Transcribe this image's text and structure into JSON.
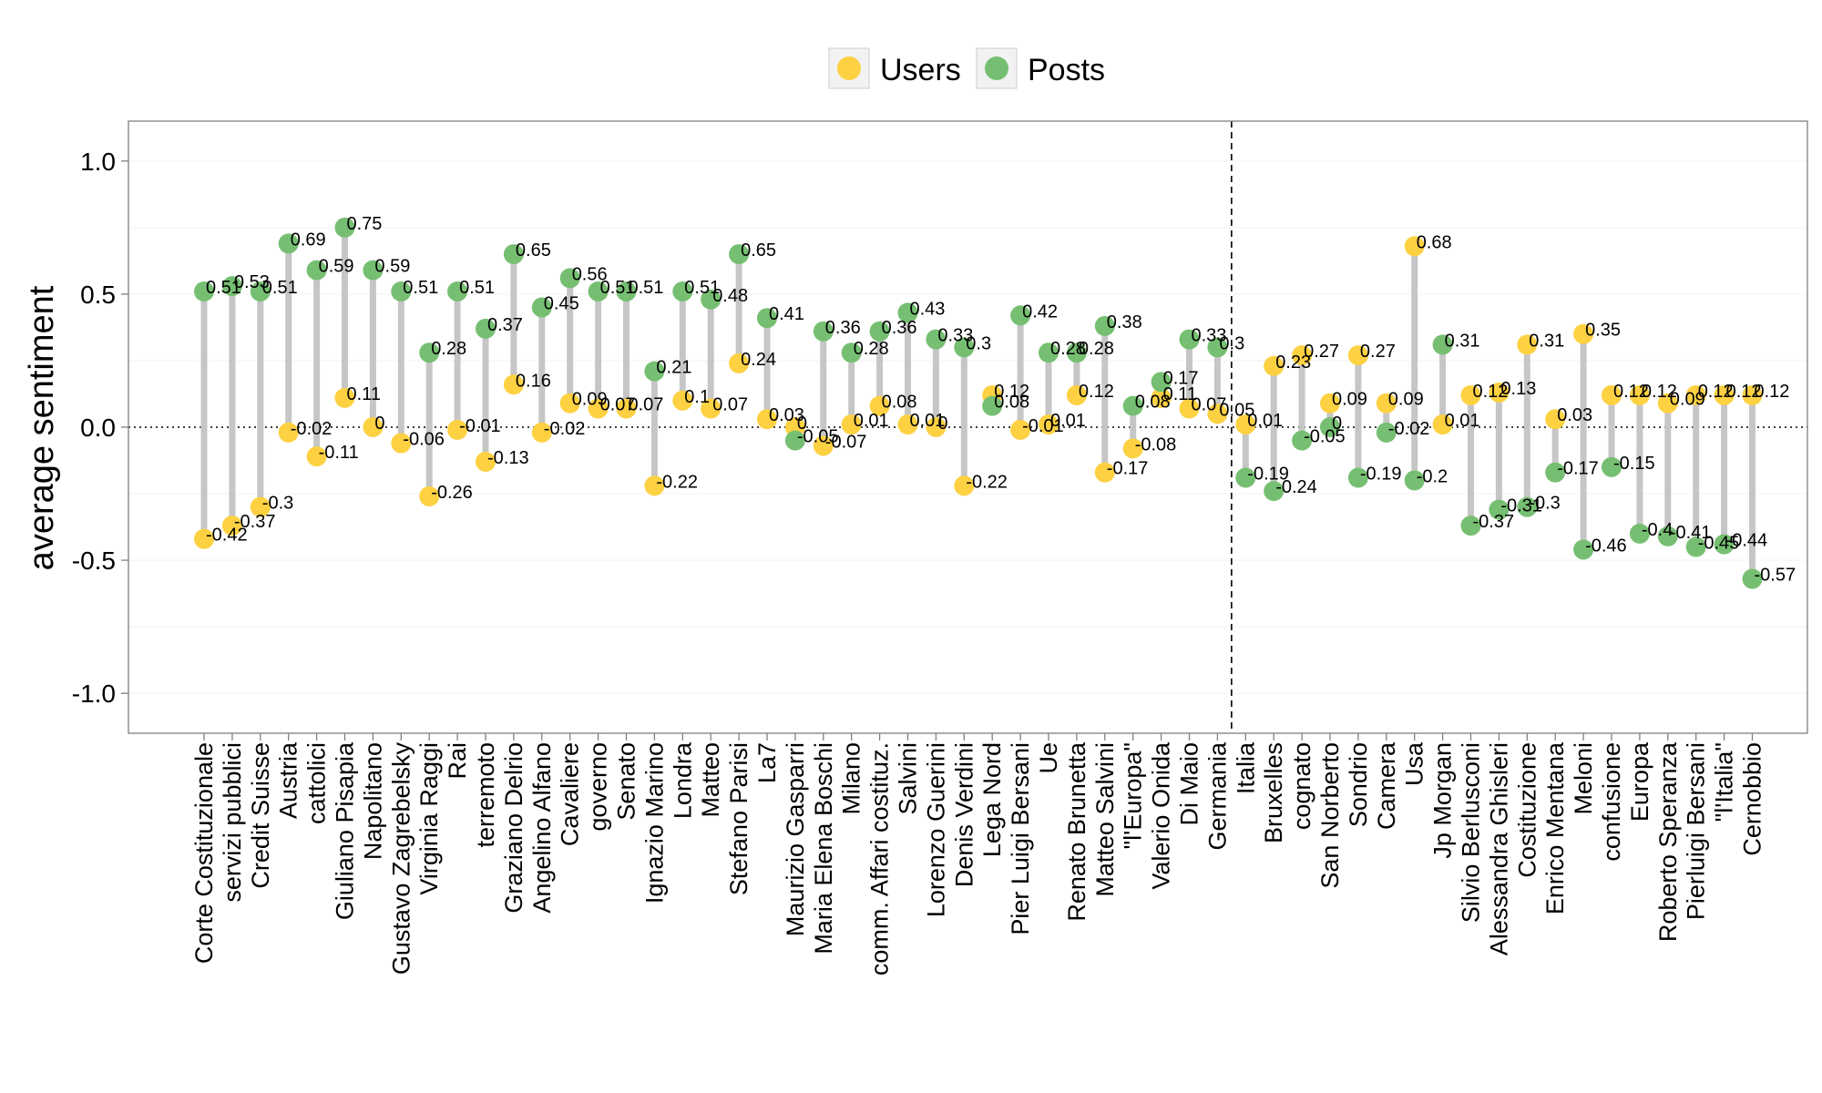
{
  "chart_data": {
    "type": "dumbbell",
    "ylabel": "average sentiment",
    "ylim": [
      -1.15,
      1.15
    ],
    "yticks": [
      1.0,
      0.5,
      0.0,
      -0.5,
      -1.0
    ],
    "ytick_labels": [
      "1.0",
      "0.5",
      "0.0",
      "-0.5",
      "-1.0"
    ],
    "divider_after_index": 36,
    "colors": {
      "users": "#FDD142",
      "posts": "#76BF72",
      "segment": "#C6C6C6"
    },
    "legend": [
      {
        "name": "Users",
        "color": "#FDD142"
      },
      {
        "name": "Posts",
        "color": "#76BF72"
      }
    ],
    "categories": [
      "Corte Costituzionale",
      "servizi pubblici",
      "Credit Suisse",
      "Austria",
      "cattolici",
      "Giuliano Pisapia",
      "Napolitano",
      "Gustavo Zagrebelsky",
      "Virginia Raggi",
      "Rai",
      "terremoto",
      "Graziano Delrio",
      "Angelino Alfano",
      "Cavaliere",
      "governo",
      "Senato",
      "Ignazio Marino",
      "Londra",
      "Matteo",
      "Stefano Parisi",
      "La7",
      "Maurizio Gasparri",
      "Maria Elena Boschi",
      "Milano",
      "comm. Affari costituz.",
      "Salvini",
      "Lorenzo Guerini",
      "Denis Verdini",
      "Lega Nord",
      "Pier Luigi Bersani",
      "Ue",
      "Renato Brunetta",
      "Matteo Salvini",
      "\"l'Europa\"",
      "Valerio Onida",
      "Di Maio",
      "Germania",
      "Italia",
      "Bruxelles",
      "cognato",
      "San Norberto",
      "Sondrio",
      "Camera",
      "Usa",
      "Jp Morgan",
      "Silvio Berlusconi",
      "Alessandra Ghisleri",
      "Costituzione",
      "Enrico Mentana",
      "Meloni",
      "confusione",
      "Europa",
      "Roberto Speranza",
      "Pierluigi Bersani",
      "\"l'Italia\"",
      "Cernobbio"
    ],
    "series": [
      {
        "name": "Users",
        "values": [
          -0.42,
          -0.37,
          -0.3,
          -0.02,
          -0.11,
          0.11,
          0,
          -0.06,
          -0.26,
          -0.01,
          -0.13,
          0.16,
          -0.02,
          0.09,
          0.07,
          0.07,
          -0.22,
          0.1,
          0.07,
          0.24,
          0.03,
          0,
          -0.07,
          0.01,
          0.08,
          0.01,
          0,
          -0.22,
          0.12,
          -0.01,
          0.01,
          0.12,
          -0.17,
          -0.08,
          0.11,
          0.07,
          0.05,
          0.01,
          0.23,
          0.27,
          0.09,
          0.27,
          0.09,
          0.68,
          0.01,
          0.12,
          0.13,
          0.31,
          0.03,
          0.35,
          0.12,
          0.12,
          0.09,
          0.12,
          0.12,
          0.12
        ]
      },
      {
        "name": "Posts",
        "values": [
          0.51,
          0.53,
          0.51,
          0.69,
          0.59,
          0.75,
          0.59,
          0.51,
          0.28,
          0.51,
          0.37,
          0.65,
          0.45,
          0.56,
          0.51,
          0.51,
          0.21,
          0.51,
          0.48,
          0.65,
          0.41,
          -0.05,
          0.36,
          0.28,
          0.36,
          0.43,
          0.33,
          0.3,
          0.08,
          0.42,
          0.28,
          0.28,
          0.38,
          0.08,
          0.17,
          0.33,
          0.3,
          -0.19,
          -0.24,
          -0.05,
          0,
          -0.19,
          -0.02,
          -0.2,
          0.31,
          -0.37,
          -0.31,
          -0.3,
          -0.17,
          -0.46,
          -0.15,
          -0.4,
          -0.41,
          -0.45,
          -0.44,
          -0.57
        ]
      }
    ],
    "value_labels": {
      "Users": [
        "-0.42",
        "-0.37",
        "-0.3",
        "-0.02",
        "-0.11",
        "0.11",
        "0",
        "-0.06",
        "-0.26",
        "-0.01",
        "-0.13",
        "0.16",
        "-0.02",
        "0.09",
        "0.07",
        "0.07",
        "-0.22",
        "0.1",
        "0.07",
        "0.24",
        "0.03",
        "0",
        "-0.07",
        "0.01",
        "0.08",
        "0.01",
        "0",
        "-0.22",
        "0.12",
        "-0.01",
        "0.01",
        "0.12",
        "-0.17",
        "-0.08",
        "0.11",
        "0.07",
        "0.05",
        "0.01",
        "0.23",
        "0.27",
        "0.09",
        "0.27",
        "0.09",
        "0.68",
        "0.01",
        "0.12",
        "0.13",
        "0.31",
        "0.03",
        "0.35",
        "0.12",
        "0.12",
        "0.09",
        "0.12",
        "0.12",
        "0.12"
      ],
      "Posts": [
        "0.51",
        "0.53",
        "0.51",
        "0.69",
        "0.59",
        "0.75",
        "0.59",
        "0.51",
        "0.28",
        "0.51",
        "0.37",
        "0.65",
        "0.45",
        "0.56",
        "0.51",
        "0.51",
        "0.21",
        "0.51",
        "0.48",
        "0.65",
        "0.41",
        "-0.05",
        "0.36",
        "0.28",
        "0.36",
        "0.43",
        "0.33",
        "0.3",
        "0.08",
        "0.42",
        "0.28",
        "0.28",
        "0.38",
        "0.08",
        "0.17",
        "0.33",
        "0.3",
        "-0.19",
        "-0.24",
        "-0.05",
        "0",
        "-0.19",
        "-0.02",
        "-0.2",
        "0.31",
        "-0.37",
        "-0.31",
        "-0.3",
        "-0.17",
        "-0.46",
        "-0.15",
        "-0.4",
        "-0.41",
        "-0.45",
        "-0.44",
        "-0.57"
      ]
    }
  }
}
